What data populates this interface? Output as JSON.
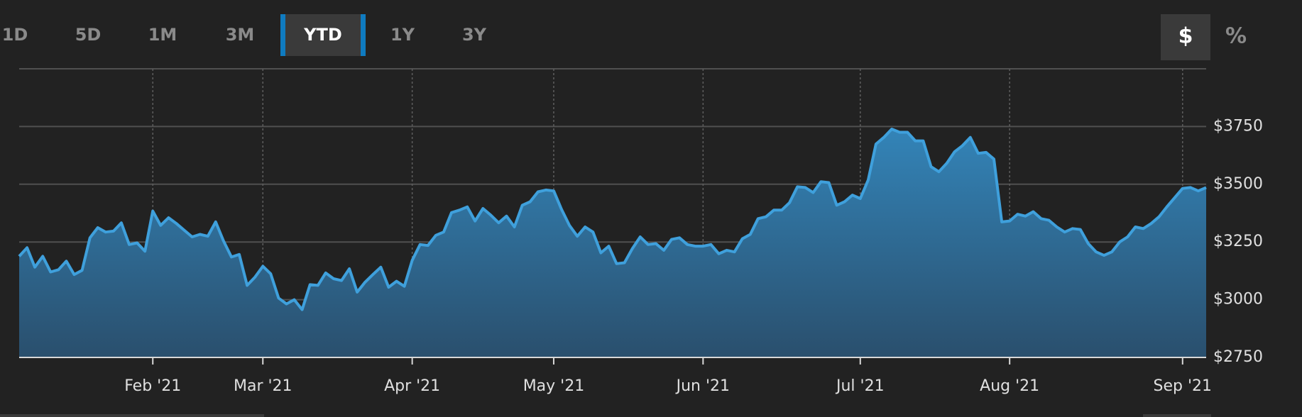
{
  "range_buttons": [
    {
      "label": "1D"
    },
    {
      "label": "5D"
    },
    {
      "label": "1M"
    },
    {
      "label": "3M"
    },
    {
      "label": "YTD",
      "selected": true
    },
    {
      "label": "1Y"
    },
    {
      "label": "3Y"
    }
  ],
  "unit_buttons": [
    {
      "label": "$",
      "selected": true
    },
    {
      "label": "%"
    }
  ],
  "chart_data": {
    "type": "area",
    "categories": [
      null,
      null,
      null,
      null,
      null,
      null,
      null,
      null,
      null,
      null,
      null,
      null,
      null,
      null,
      null,
      null,
      null,
      "Feb '21",
      null,
      null,
      null,
      null,
      null,
      null,
      null,
      null,
      null,
      null,
      null,
      null,
      null,
      "Mar '21",
      null,
      null,
      null,
      null,
      null,
      null,
      null,
      null,
      null,
      null,
      null,
      null,
      null,
      null,
      null,
      null,
      null,
      null,
      "Apr '21",
      null,
      null,
      null,
      null,
      null,
      null,
      null,
      null,
      null,
      null,
      null,
      null,
      null,
      null,
      null,
      null,
      null,
      "May '21",
      null,
      null,
      null,
      null,
      null,
      null,
      null,
      null,
      null,
      null,
      null,
      null,
      null,
      null,
      null,
      null,
      null,
      null,
      "Jun '21",
      null,
      null,
      null,
      null,
      null,
      null,
      null,
      null,
      null,
      null,
      null,
      null,
      null,
      null,
      null,
      null,
      null,
      null,
      null,
      "Jul '21",
      null,
      null,
      null,
      null,
      null,
      null,
      null,
      null,
      null,
      null,
      null,
      null,
      null,
      null,
      null,
      null,
      null,
      null,
      "Aug '21",
      null,
      null,
      null,
      null,
      null,
      null,
      null,
      null,
      null,
      null,
      null,
      null,
      null,
      null,
      null,
      null,
      null,
      null,
      null,
      null,
      null,
      "Sep '21",
      null,
      null,
      null
    ],
    "values": [
      3188,
      3225,
      3141,
      3188,
      3120,
      3130,
      3167,
      3109,
      3127,
      3268,
      3312,
      3293,
      3297,
      3333,
      3239,
      3246,
      3210,
      3384,
      3322,
      3355,
      3330,
      3301,
      3272,
      3283,
      3275,
      3337,
      3254,
      3185,
      3196,
      3062,
      3098,
      3145,
      3112,
      3007,
      2982,
      3000,
      2957,
      3065,
      3062,
      3116,
      3091,
      3083,
      3134,
      3033,
      3076,
      3109,
      3141,
      3054,
      3080,
      3058,
      3170,
      3239,
      3235,
      3279,
      3293,
      3377,
      3388,
      3402,
      3341,
      3395,
      3366,
      3333,
      3362,
      3315,
      3409,
      3424,
      3467,
      3475,
      3471,
      3391,
      3322,
      3275,
      3315,
      3293,
      3203,
      3232,
      3156,
      3160,
      3221,
      3272,
      3239,
      3243,
      3214,
      3261,
      3268,
      3239,
      3232,
      3232,
      3239,
      3199,
      3214,
      3207,
      3264,
      3283,
      3351,
      3359,
      3388,
      3388,
      3420,
      3489,
      3486,
      3464,
      3511,
      3507,
      3409,
      3424,
      3453,
      3438,
      3518,
      3674,
      3703,
      3739,
      3725,
      3725,
      3688,
      3688,
      3576,
      3554,
      3591,
      3641,
      3667,
      3703,
      3634,
      3638,
      3609,
      3337,
      3341,
      3370,
      3362,
      3381,
      3351,
      3344,
      3315,
      3293,
      3308,
      3304,
      3243,
      3207,
      3192,
      3207,
      3250,
      3272,
      3315,
      3308,
      3330,
      3359,
      3402,
      3442,
      3482,
      3486,
      3471,
      3486
    ],
    "color": "#3fa0dc",
    "ylim": [
      2750,
      4000
    ],
    "yticks": [
      {
        "value": 2750,
        "label": "$2750"
      },
      {
        "value": 3000,
        "label": "$3000"
      },
      {
        "value": 3250,
        "label": "$3250"
      },
      {
        "value": 3500,
        "label": "$3500"
      },
      {
        "value": 3750,
        "label": "$3750"
      }
    ],
    "grid": true
  }
}
